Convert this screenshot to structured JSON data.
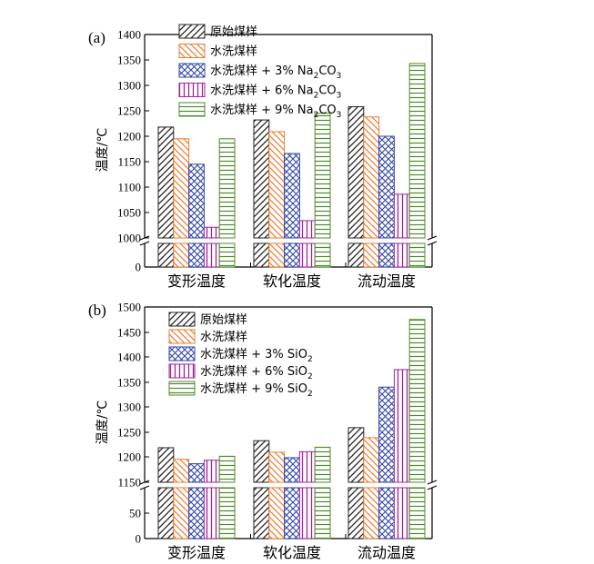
{
  "chart_data": [
    {
      "type": "bar",
      "panel_label": "(a)",
      "ylabel": "温度/℃",
      "categories": [
        "变形温度",
        "软化温度",
        "流动温度"
      ],
      "y_ticks": [
        "1400",
        "1350",
        "1300",
        "1250",
        "1200",
        "1150",
        "1100",
        "1050",
        "1000",
        "0"
      ],
      "ylim_upper": [
        1000,
        1400
      ],
      "ylim_lower": [
        0,
        50
      ],
      "axis_break": true,
      "legend_position": "top",
      "series": [
        {
          "name": "原始煤样",
          "legend_main": "原始煤样",
          "legend_sub": "",
          "legend_tail": "",
          "pattern": "diag-black",
          "color": "#222222",
          "values": [
            1218,
            1232,
            1258
          ]
        },
        {
          "name": "水洗煤样",
          "legend_main": "水洗煤样",
          "legend_sub": "",
          "legend_tail": "",
          "pattern": "diag-orange",
          "color": "#ee7b30",
          "values": [
            1195,
            1209,
            1238
          ]
        },
        {
          "name": "水洗煤样 + 3% Na2CO3",
          "legend_main": "水洗煤样 + 3% Na",
          "legend_sub": "2",
          "legend_tail": "CO",
          "legend_sub2": "3",
          "pattern": "cross-blue",
          "color": "#3045a8",
          "values": [
            1145,
            1166,
            1200
          ]
        },
        {
          "name": "水洗煤样 + 6% Na2CO3",
          "legend_main": "水洗煤样 + 6% Na",
          "legend_sub": "2",
          "legend_tail": "CO",
          "legend_sub2": "3",
          "pattern": "vert-purple",
          "color": "#a1239b",
          "values": [
            1021,
            1034,
            1086
          ]
        },
        {
          "name": "水洗煤样 + 9% Na2CO3",
          "legend_main": "水洗煤样 + 9% Na",
          "legend_sub": "2",
          "legend_tail": "CO",
          "legend_sub2": "3",
          "pattern": "horiz-green",
          "color": "#4e8a2c",
          "values": [
            1195,
            1245,
            1343
          ]
        }
      ]
    },
    {
      "type": "bar",
      "panel_label": "(b)",
      "ylabel": "温度/℃",
      "categories": [
        "变形温度",
        "软化温度",
        "流动温度"
      ],
      "y_ticks": [
        "1500",
        "1450",
        "1400",
        "1350",
        "1300",
        "1250",
        "1200",
        "1150",
        "50",
        "0"
      ],
      "ylim_upper": [
        1150,
        1500
      ],
      "ylim_lower": [
        0,
        100
      ],
      "axis_break": true,
      "legend_position": "top-left",
      "series": [
        {
          "name": "原始煤样",
          "legend_main": "原始煤样",
          "legend_sub": "",
          "legend_tail": "",
          "pattern": "diag-black",
          "color": "#222222",
          "values": [
            1219,
            1233,
            1259
          ]
        },
        {
          "name": "水洗煤样",
          "legend_main": "水洗煤样",
          "legend_sub": "",
          "legend_tail": "",
          "pattern": "diag-orange",
          "color": "#ee7b30",
          "values": [
            1196,
            1210,
            1239
          ]
        },
        {
          "name": "水洗煤样 + 3% SiO2",
          "legend_main": "水洗煤样 + 3% SiO",
          "legend_sub": "2",
          "legend_tail": "",
          "pattern": "cross-blue",
          "color": "#3045a8",
          "values": [
            1187,
            1199,
            1340
          ]
        },
        {
          "name": "水洗煤样 + 6% SiO2",
          "legend_main": "水洗煤样 + 6% SiO",
          "legend_sub": "2",
          "legend_tail": "",
          "pattern": "vert-purple",
          "color": "#a1239b",
          "values": [
            1194,
            1211,
            1375
          ]
        },
        {
          "name": "水洗煤样 + 9% SiO2",
          "legend_main": "水洗煤样 + 9% SiO",
          "legend_sub": "2",
          "legend_tail": "",
          "pattern": "horiz-green",
          "color": "#4e8a2c",
          "values": [
            1202,
            1220,
            1475
          ]
        }
      ]
    }
  ]
}
